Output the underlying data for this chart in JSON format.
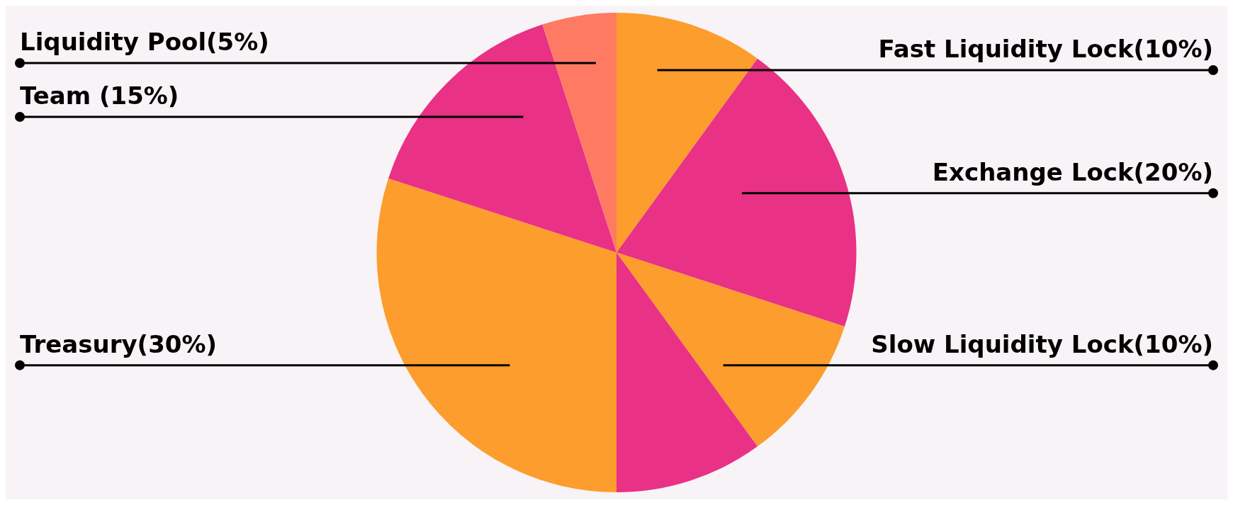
{
  "chart_data": {
    "type": "pie",
    "categories": [
      "Fast Liquidity Lock(10%)",
      "Exchange Lock(20%)",
      "Slow Liquidity Lock(10%)",
      null,
      "Treasury(30%)",
      "Team (15%)",
      "Liquidity Pool(5%)"
    ],
    "values": [
      10,
      20,
      10,
      10,
      30,
      15,
      5
    ],
    "colors": [
      "#fd9d2d",
      "#e93185",
      "#fd9d2d",
      "#e93185",
      "#fd9d2d",
      "#e93185",
      "#fe7a63"
    ],
    "legend": false
  }
}
